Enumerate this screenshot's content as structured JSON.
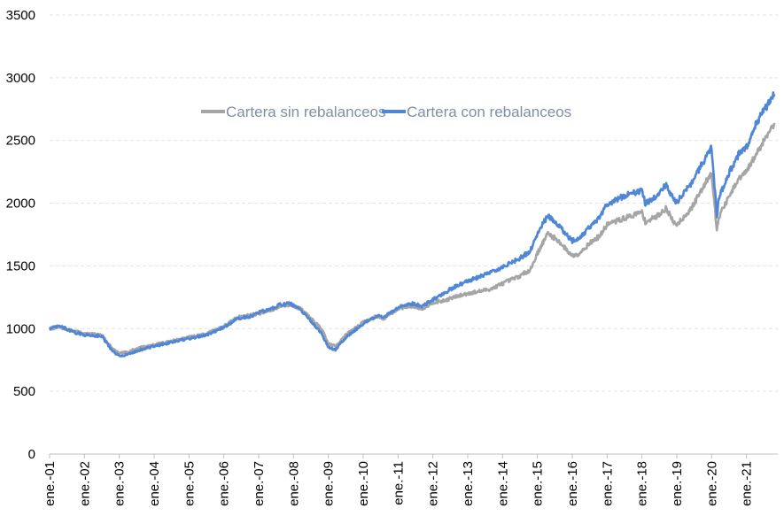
{
  "chart_data": {
    "type": "line",
    "title": "",
    "xlabel": "",
    "ylabel": "",
    "ylim": [
      0,
      3500
    ],
    "yticks": [
      0,
      500,
      1000,
      1500,
      2000,
      2500,
      3000,
      3500
    ],
    "yticks_text": [
      "0",
      "500",
      "1000",
      "1500",
      "2000",
      "2500",
      "3000",
      "3500"
    ],
    "categories": [
      "ene.-01",
      "ene.-02",
      "ene.-03",
      "ene.-04",
      "ene.-05",
      "ene.-06",
      "ene.-07",
      "ene.-08",
      "ene.-09",
      "ene.-10",
      "ene.-11",
      "ene.-12",
      "ene.-13",
      "ene.-14",
      "ene.-15",
      "ene.-16",
      "ene.-17",
      "ene.-18",
      "ene.-19",
      "ene.-20",
      "ene.-21"
    ],
    "legend_position": "top-center",
    "gridlines": "horizontal dashed",
    "series": [
      {
        "name": "Cartera sin rebalanceos",
        "color": "#a5a5a5",
        "x": [
          2001.0,
          2001.3,
          2001.7,
          2002.0,
          2002.5,
          2002.8,
          2003.0,
          2003.3,
          2003.6,
          2004.0,
          2004.5,
          2005.0,
          2005.5,
          2006.0,
          2006.4,
          2006.8,
          2007.0,
          2007.4,
          2007.6,
          2007.9,
          2008.2,
          2008.5,
          2008.8,
          2009.0,
          2009.2,
          2009.5,
          2010.0,
          2010.4,
          2010.6,
          2011.0,
          2011.4,
          2011.7,
          2012.0,
          2012.3,
          2012.6,
          2013.0,
          2013.4,
          2013.7,
          2014.0,
          2014.5,
          2014.8,
          2015.0,
          2015.3,
          2015.6,
          2015.8,
          2016.0,
          2016.2,
          2016.5,
          2016.8,
          2017.0,
          2017.5,
          2018.0,
          2018.1,
          2018.4,
          2018.7,
          2018.9,
          2019.0,
          2019.4,
          2019.7,
          2020.0,
          2020.15,
          2020.22,
          2020.5,
          2020.8,
          2021.0,
          2021.3,
          2021.6,
          2021.8
        ],
        "values": [
          1000,
          1010,
          980,
          960,
          950,
          840,
          800,
          820,
          850,
          870,
          900,
          930,
          960,
          1020,
          1090,
          1110,
          1120,
          1150,
          1180,
          1190,
          1160,
          1080,
          1000,
          880,
          860,
          950,
          1050,
          1100,
          1080,
          1160,
          1180,
          1160,
          1210,
          1220,
          1250,
          1280,
          1300,
          1320,
          1360,
          1420,
          1470,
          1600,
          1760,
          1700,
          1640,
          1580,
          1600,
          1680,
          1740,
          1830,
          1880,
          1930,
          1850,
          1890,
          1960,
          1850,
          1830,
          1950,
          2100,
          2250,
          1780,
          1900,
          2050,
          2200,
          2250,
          2400,
          2550,
          2640
        ]
      },
      {
        "name": "Cartera con rebalanceos",
        "color": "#4f86d6",
        "x": [
          2001.0,
          2001.3,
          2001.7,
          2002.0,
          2002.5,
          2002.8,
          2003.0,
          2003.3,
          2003.6,
          2004.0,
          2004.5,
          2005.0,
          2005.5,
          2006.0,
          2006.4,
          2006.8,
          2007.0,
          2007.4,
          2007.6,
          2007.9,
          2008.2,
          2008.5,
          2008.8,
          2009.0,
          2009.2,
          2009.5,
          2010.0,
          2010.4,
          2010.6,
          2011.0,
          2011.4,
          2011.7,
          2012.0,
          2012.3,
          2012.6,
          2013.0,
          2013.4,
          2013.7,
          2014.0,
          2014.5,
          2014.8,
          2015.0,
          2015.3,
          2015.6,
          2015.8,
          2016.0,
          2016.2,
          2016.5,
          2016.8,
          2017.0,
          2017.5,
          2018.0,
          2018.1,
          2018.4,
          2018.7,
          2018.9,
          2019.0,
          2019.4,
          2019.7,
          2020.0,
          2020.15,
          2020.22,
          2020.5,
          2020.8,
          2021.0,
          2021.3,
          2021.6,
          2021.8
        ],
        "values": [
          1000,
          1020,
          970,
          950,
          940,
          820,
          780,
          800,
          830,
          860,
          890,
          920,
          950,
          1010,
          1080,
          1100,
          1130,
          1160,
          1190,
          1200,
          1150,
          1060,
          960,
          850,
          830,
          930,
          1040,
          1100,
          1090,
          1170,
          1200,
          1180,
          1230,
          1280,
          1330,
          1380,
          1420,
          1450,
          1490,
          1560,
          1620,
          1760,
          1900,
          1830,
          1760,
          1700,
          1720,
          1810,
          1890,
          1990,
          2060,
          2100,
          2000,
          2050,
          2150,
          2030,
          2010,
          2150,
          2300,
          2440,
          1900,
          2050,
          2240,
          2400,
          2450,
          2650,
          2780,
          2870
        ]
      }
    ]
  }
}
